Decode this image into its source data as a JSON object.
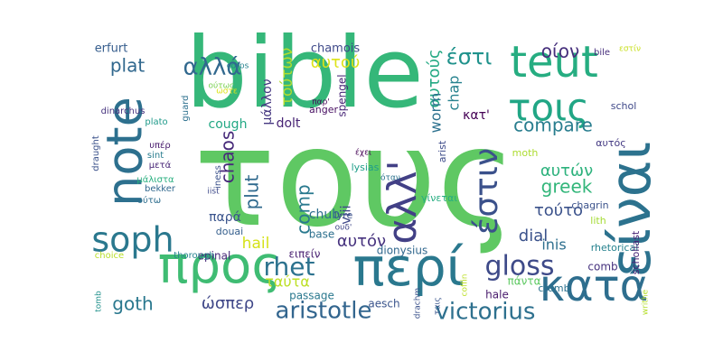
{
  "words": [
    {
      "text": "τους",
      "color": "#5fc863"
    },
    {
      "text": "bible",
      "color": "#35b779"
    },
    {
      "text": "περί",
      "color": "#2a788e"
    },
    {
      "text": "προς",
      "color": "#3fbc73"
    },
    {
      "text": "είναι",
      "color": "#2c728e"
    },
    {
      "text": "κατά",
      "color": "#2e6e8e"
    },
    {
      "text": "teut",
      "color": "#26ad81"
    },
    {
      "text": "note",
      "color": "#2d708e"
    },
    {
      "text": "τοις",
      "color": "#21a685"
    },
    {
      "text": "αλλ'",
      "color": "#424086"
    },
    {
      "text": "soph",
      "color": "#2a788e"
    },
    {
      "text": "έστιν",
      "color": "#3b518b"
    },
    {
      "text": "gloss",
      "color": "#3e4a89"
    },
    {
      "text": "rhet",
      "color": "#2c728e"
    },
    {
      "text": "aristotle",
      "color": "#32658e"
    },
    {
      "text": "victorius",
      "color": "#2d708e"
    },
    {
      "text": "αλλά",
      "color": "#31688e"
    },
    {
      "text": "έστι",
      "color": "#20928c"
    },
    {
      "text": "compare",
      "color": "#287d8e"
    },
    {
      "text": "οίον",
      "color": "#462f7c"
    },
    {
      "text": "greek",
      "color": "#32b67a"
    },
    {
      "text": "goth",
      "color": "#2a788e"
    },
    {
      "text": "plat",
      "color": "#31688e"
    },
    {
      "text": "comp",
      "color": "#29798e"
    },
    {
      "text": "chaos",
      "color": "#472a7a"
    },
    {
      "text": "plut",
      "color": "#306a8e"
    },
    {
      "text": "αυτών",
      "color": "#2db27d"
    },
    {
      "text": "τούτο",
      "color": "#3b528b"
    },
    {
      "text": "αυτόν",
      "color": "#46327e"
    },
    {
      "text": "dial",
      "color": "#3b528b"
    },
    {
      "text": "ώσπερ",
      "color": "#3f4788"
    },
    {
      "text": "hail",
      "color": "#d5e21a"
    },
    {
      "text": "ταύτα",
      "color": "#bddf26"
    },
    {
      "text": "inis",
      "color": "#2e6f8e"
    },
    {
      "text": "αυτούς",
      "color": "#23a983"
    },
    {
      "text": "αυτού",
      "color": "#dde318"
    },
    {
      "text": "τούτων",
      "color": "#b2dd2d"
    },
    {
      "text": "chap",
      "color": "#26828e"
    },
    {
      "text": "worm",
      "color": "#2c718e"
    },
    {
      "text": "viii",
      "color": "#3f4889"
    },
    {
      "text": "κατ'",
      "color": "#440154"
    },
    {
      "text": "παρά",
      "color": "#3a548c"
    },
    {
      "text": "chub",
      "color": "#2e6e8e"
    },
    {
      "text": "cough",
      "color": "#22a884"
    },
    {
      "text": "μάλλον",
      "color": "#453781"
    },
    {
      "text": "dolt",
      "color": "#482475"
    },
    {
      "text": "erfurt",
      "color": "#365d8d"
    },
    {
      "text": "chamois",
      "color": "#3e4989"
    },
    {
      "text": "spengel",
      "color": "#482677"
    },
    {
      "text": "aesch",
      "color": "#3a548c"
    },
    {
      "text": "comb",
      "color": "#46327e"
    },
    {
      "text": "hale",
      "color": "#481a6c"
    },
    {
      "text": "πάντα",
      "color": "#5ec962"
    },
    {
      "text": "dionysius",
      "color": "#31688e"
    },
    {
      "text": "passage",
      "color": "#2a788e"
    },
    {
      "text": "epinal",
      "color": "#482878"
    },
    {
      "text": "ειπείν",
      "color": "#481f70"
    },
    {
      "text": "base",
      "color": "#2d708e"
    },
    {
      "text": "lyre",
      "color": "#3b528b"
    },
    {
      "text": "douai",
      "color": "#355f8d"
    },
    {
      "text": "γίνεται",
      "color": "#26ad81"
    },
    {
      "text": "lysias",
      "color": "#1f9e89"
    },
    {
      "text": "anger",
      "color": "#470e61"
    },
    {
      "text": "arist",
      "color": "#3e4c8a"
    },
    {
      "text": "moth",
      "color": "#addc30"
    },
    {
      "text": "αυτός",
      "color": "#443a83"
    },
    {
      "text": "chagrin",
      "color": "#3b528b"
    },
    {
      "text": "lith",
      "color": "#a5db36"
    },
    {
      "text": "rhetorical",
      "color": "#26828e"
    },
    {
      "text": "scholiast",
      "color": "#482576"
    },
    {
      "text": "schol",
      "color": "#3f4889"
    },
    {
      "text": "bile",
      "color": "#472f7d"
    },
    {
      "text": "εστίν",
      "color": "#c8e020"
    },
    {
      "text": "guard",
      "color": "#2d708e"
    },
    {
      "text": "plato",
      "color": "#1f9a8a"
    },
    {
      "text": "dinarchus",
      "color": "#46337f"
    },
    {
      "text": "draught",
      "color": "#3b528b"
    },
    {
      "text": "υπέρ",
      "color": "#481b6d"
    },
    {
      "text": "μετά",
      "color": "#482677"
    },
    {
      "text": "μάλιστα",
      "color": "#29af7f"
    },
    {
      "text": "ούτω",
      "color": "#2e6e8e"
    },
    {
      "text": "bekker",
      "color": "#31688e"
    },
    {
      "text": "sint",
      "color": "#287c8e"
    },
    {
      "text": "choice",
      "color": "#b8de29"
    },
    {
      "text": "thorough",
      "color": "#26828e"
    },
    {
      "text": "tomb",
      "color": "#21918c"
    },
    {
      "text": "corps",
      "color": "#26828e"
    },
    {
      "text": "ούτως",
      "color": "#7ad151"
    },
    {
      "text": "ώστε",
      "color": "#dce319"
    },
    {
      "text": "παρ'",
      "color": "#440154"
    },
    {
      "text": "έχει",
      "color": "#440154"
    },
    {
      "text": "όταν",
      "color": "#2c728e"
    },
    {
      "text": "iness",
      "color": "#3b528b"
    },
    {
      "text": "iist",
      "color": "#3e4989"
    },
    {
      "text": "ουδ'",
      "color": "#404688"
    },
    {
      "text": "drachm",
      "color": "#3b528b"
    },
    {
      "text": "ταις",
      "color": "#39558c"
    },
    {
      "text": "coffin",
      "color": "#bddf26"
    },
    {
      "text": "crumb",
      "color": "#2c728e"
    },
    {
      "text": "writhe",
      "color": "#b5de2b"
    }
  ]
}
